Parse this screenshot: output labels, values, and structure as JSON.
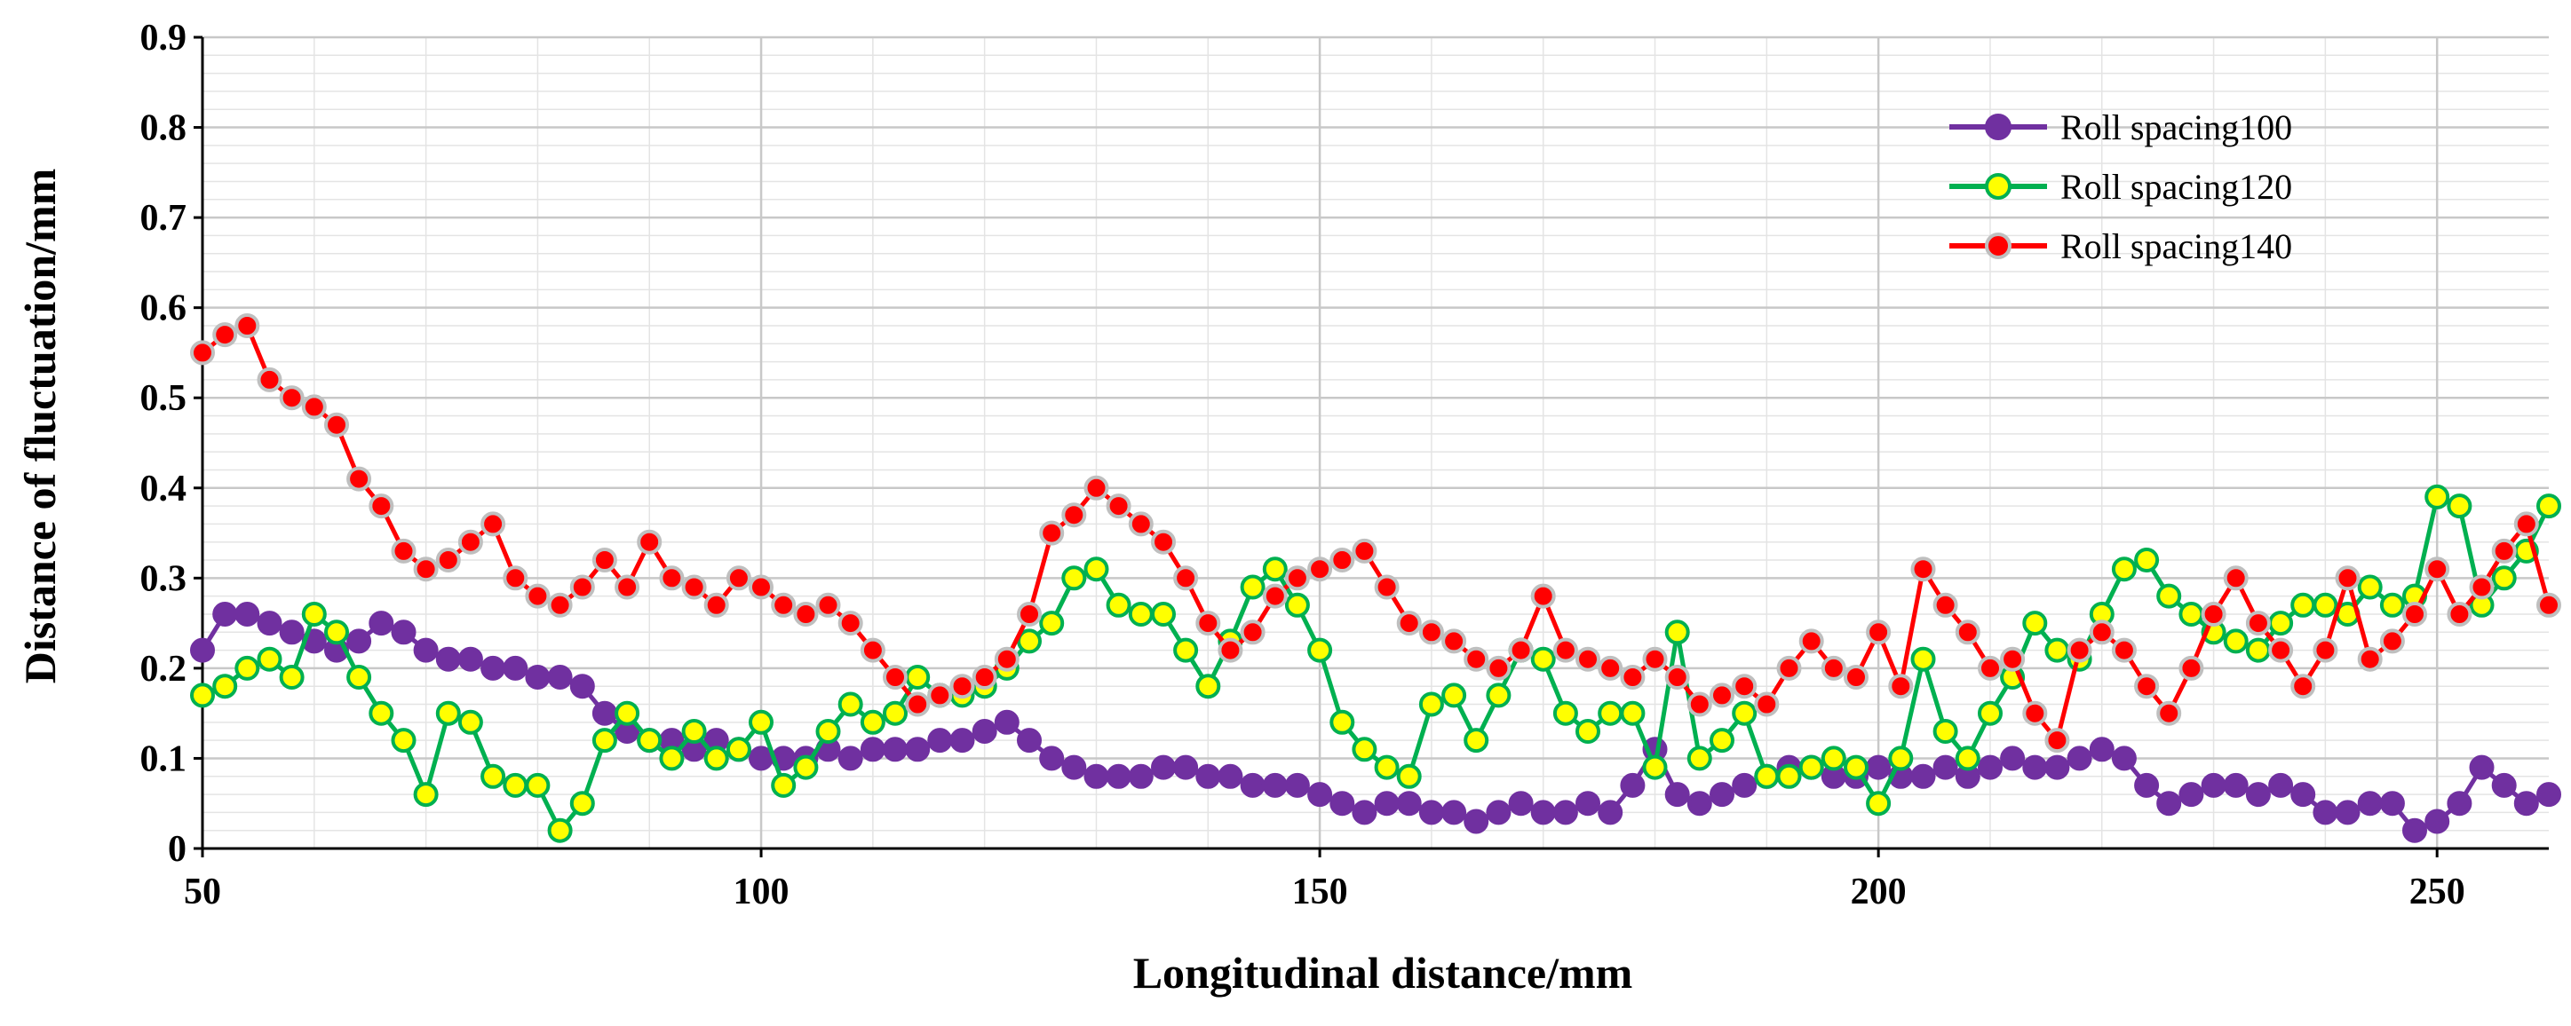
{
  "chart_data": {
    "type": "line",
    "title": "",
    "xlabel": "Longitudinal distance/mm",
    "ylabel": "Distance of fluctuation/mm",
    "xlim": [
      50,
      260
    ],
    "ylim": [
      0,
      0.9
    ],
    "x_ticks": [
      50,
      100,
      150,
      200,
      250
    ],
    "y_ticks": [
      0,
      0.1,
      0.2,
      0.3,
      0.4,
      0.5,
      0.6,
      0.7,
      0.8,
      0.9
    ],
    "y_tick_labels": [
      "0",
      "0.1",
      "0.2",
      "0.3",
      "0.4",
      "0.5",
      "0.6",
      "0.7",
      "0.8",
      "0.9"
    ],
    "grid": true,
    "legend_position": "top-right",
    "series": [
      {
        "name": "Roll spacing100",
        "line_color": "#7030a0",
        "marker_fill": "#7030a0",
        "marker_edge": "#7030a0",
        "x": [
          50,
          52,
          54,
          56,
          58,
          60,
          62,
          64,
          66,
          68,
          70,
          72,
          74,
          76,
          78,
          80,
          82,
          84,
          86,
          88,
          90,
          92,
          94,
          96,
          98,
          100,
          102,
          104,
          106,
          108,
          110,
          112,
          114,
          116,
          118,
          120,
          122,
          124,
          126,
          128,
          130,
          132,
          134,
          136,
          138,
          140,
          142,
          144,
          146,
          148,
          150,
          152,
          154,
          156,
          158,
          160,
          162,
          164,
          166,
          168,
          170,
          172,
          174,
          176,
          178,
          180,
          182,
          184,
          186,
          188,
          190,
          192,
          194,
          196,
          198,
          200,
          202,
          204,
          206,
          208,
          210,
          212,
          214,
          216,
          218,
          220,
          222,
          224,
          226,
          228,
          230,
          232,
          234,
          236,
          238,
          240,
          242,
          244,
          246,
          248,
          250,
          252,
          254,
          256,
          258,
          260
        ],
        "y": [
          0.22,
          0.26,
          0.26,
          0.25,
          0.24,
          0.23,
          0.22,
          0.23,
          0.25,
          0.24,
          0.22,
          0.21,
          0.21,
          0.2,
          0.2,
          0.19,
          0.19,
          0.18,
          0.15,
          0.13,
          0.12,
          0.12,
          0.11,
          0.12,
          0.11,
          0.1,
          0.1,
          0.1,
          0.11,
          0.1,
          0.11,
          0.11,
          0.11,
          0.12,
          0.12,
          0.13,
          0.14,
          0.12,
          0.1,
          0.09,
          0.08,
          0.08,
          0.08,
          0.09,
          0.09,
          0.08,
          0.08,
          0.07,
          0.07,
          0.07,
          0.06,
          0.05,
          0.04,
          0.05,
          0.05,
          0.04,
          0.04,
          0.03,
          0.04,
          0.05,
          0.04,
          0.04,
          0.05,
          0.04,
          0.07,
          0.11,
          0.06,
          0.05,
          0.06,
          0.07,
          0.08,
          0.09,
          0.09,
          0.08,
          0.08,
          0.09,
          0.08,
          0.08,
          0.09,
          0.08,
          0.09,
          0.1,
          0.09,
          0.09,
          0.1,
          0.11,
          0.1,
          0.07,
          0.05,
          0.06,
          0.07,
          0.07,
          0.06,
          0.07,
          0.06,
          0.04,
          0.04,
          0.05,
          0.05,
          0.02,
          0.03,
          0.05,
          0.09,
          0.07,
          0.05,
          0.06
        ]
      },
      {
        "name": "Roll spacing120",
        "line_color": "#00b050",
        "marker_fill": "#ffff00",
        "marker_edge": "#00b050",
        "x": [
          50,
          52,
          54,
          56,
          58,
          60,
          62,
          64,
          66,
          68,
          70,
          72,
          74,
          76,
          78,
          80,
          82,
          84,
          86,
          88,
          90,
          92,
          94,
          96,
          98,
          100,
          102,
          104,
          106,
          108,
          110,
          112,
          114,
          116,
          118,
          120,
          122,
          124,
          126,
          128,
          130,
          132,
          134,
          136,
          138,
          140,
          142,
          144,
          146,
          148,
          150,
          152,
          154,
          156,
          158,
          160,
          162,
          164,
          166,
          168,
          170,
          172,
          174,
          176,
          178,
          180,
          182,
          184,
          186,
          188,
          190,
          192,
          194,
          196,
          198,
          200,
          202,
          204,
          206,
          208,
          210,
          212,
          214,
          216,
          218,
          220,
          222,
          224,
          226,
          228,
          230,
          232,
          234,
          236,
          238,
          240,
          242,
          244,
          246,
          248,
          250,
          252,
          254,
          256,
          258,
          260
        ],
        "y": [
          0.17,
          0.18,
          0.2,
          0.21,
          0.19,
          0.26,
          0.24,
          0.19,
          0.15,
          0.12,
          0.06,
          0.15,
          0.14,
          0.08,
          0.07,
          0.07,
          0.02,
          0.05,
          0.12,
          0.15,
          0.12,
          0.1,
          0.13,
          0.1,
          0.11,
          0.14,
          0.07,
          0.09,
          0.13,
          0.16,
          0.14,
          0.15,
          0.19,
          0.17,
          0.17,
          0.18,
          0.2,
          0.23,
          0.25,
          0.3,
          0.31,
          0.27,
          0.26,
          0.26,
          0.22,
          0.18,
          0.23,
          0.29,
          0.31,
          0.27,
          0.22,
          0.14,
          0.11,
          0.09,
          0.08,
          0.16,
          0.17,
          0.12,
          0.17,
          0.22,
          0.21,
          0.15,
          0.13,
          0.15,
          0.15,
          0.09,
          0.24,
          0.1,
          0.12,
          0.15,
          0.08,
          0.08,
          0.09,
          0.1,
          0.09,
          0.05,
          0.1,
          0.21,
          0.13,
          0.1,
          0.15,
          0.19,
          0.25,
          0.22,
          0.21,
          0.26,
          0.31,
          0.32,
          0.28,
          0.26,
          0.24,
          0.23,
          0.22,
          0.25,
          0.27,
          0.27,
          0.26,
          0.29,
          0.27,
          0.28,
          0.39,
          0.38,
          0.27,
          0.3,
          0.33,
          0.38
        ]
      },
      {
        "name": "Roll spacing140",
        "line_color": "#ff0000",
        "marker_fill": "#ff0000",
        "marker_edge": "#bfbfbf",
        "x": [
          50,
          52,
          54,
          56,
          58,
          60,
          62,
          64,
          66,
          68,
          70,
          72,
          74,
          76,
          78,
          80,
          82,
          84,
          86,
          88,
          90,
          92,
          94,
          96,
          98,
          100,
          102,
          104,
          106,
          108,
          110,
          112,
          114,
          116,
          118,
          120,
          122,
          124,
          126,
          128,
          130,
          132,
          134,
          136,
          138,
          140,
          142,
          144,
          146,
          148,
          150,
          152,
          154,
          156,
          158,
          160,
          162,
          164,
          166,
          168,
          170,
          172,
          174,
          176,
          178,
          180,
          182,
          184,
          186,
          188,
          190,
          192,
          194,
          196,
          198,
          200,
          202,
          204,
          206,
          208,
          210,
          212,
          214,
          216,
          218,
          220,
          222,
          224,
          226,
          228,
          230,
          232,
          234,
          236,
          238,
          240,
          242,
          244,
          246,
          248,
          250,
          252,
          254,
          256,
          258,
          260
        ],
        "y": [
          0.55,
          0.57,
          0.58,
          0.52,
          0.5,
          0.49,
          0.47,
          0.41,
          0.38,
          0.33,
          0.31,
          0.32,
          0.34,
          0.36,
          0.3,
          0.28,
          0.27,
          0.29,
          0.32,
          0.29,
          0.34,
          0.3,
          0.29,
          0.27,
          0.3,
          0.29,
          0.27,
          0.26,
          0.27,
          0.25,
          0.22,
          0.19,
          0.16,
          0.17,
          0.18,
          0.19,
          0.21,
          0.26,
          0.35,
          0.37,
          0.4,
          0.38,
          0.36,
          0.34,
          0.3,
          0.25,
          0.22,
          0.24,
          0.28,
          0.3,
          0.31,
          0.32,
          0.33,
          0.29,
          0.25,
          0.24,
          0.23,
          0.21,
          0.2,
          0.22,
          0.28,
          0.22,
          0.21,
          0.2,
          0.19,
          0.21,
          0.19,
          0.16,
          0.17,
          0.18,
          0.16,
          0.2,
          0.23,
          0.2,
          0.19,
          0.24,
          0.18,
          0.31,
          0.27,
          0.24,
          0.2,
          0.21,
          0.15,
          0.12,
          0.22,
          0.24,
          0.22,
          0.18,
          0.15,
          0.2,
          0.26,
          0.3,
          0.25,
          0.22,
          0.18,
          0.22,
          0.3,
          0.21,
          0.23,
          0.26,
          0.31,
          0.26,
          0.29,
          0.33,
          0.36,
          0.27
        ]
      }
    ]
  }
}
